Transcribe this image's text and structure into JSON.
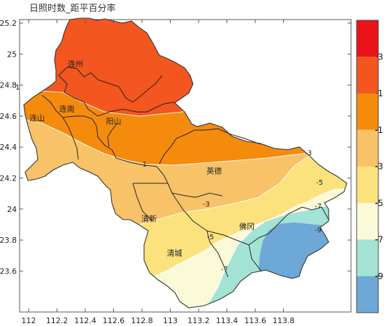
{
  "title": "日照时数_距平百分率",
  "x_ticks": [
    "112",
    "112.2",
    "112.4",
    "112.6",
    "112.8",
    "113",
    "113.2",
    "113.4",
    "113.6",
    "113.8"
  ],
  "y_ticks": [
    "25.2",
    "25",
    "24.8",
    "24.6",
    "24.4",
    "24.2",
    "24",
    "23.8",
    "23.6"
  ],
  "colorbar": {
    "ticks": [
      "3",
      "1",
      "-1",
      "-3",
      "-5",
      "-7",
      "-9"
    ],
    "colors": [
      "#e8141a",
      "#f4561f",
      "#f48b0d",
      "#f8c269",
      "#fbe27d",
      "#fafad8",
      "#a3e3d6",
      "#6ea8d6"
    ]
  },
  "cities": [
    {
      "name": "连州",
      "lon": 112.33,
      "lat": 24.92
    },
    {
      "name": "连南",
      "lon": 112.27,
      "lat": 24.63
    },
    {
      "name": "连山",
      "lon": 112.06,
      "lat": 24.57
    },
    {
      "name": "阳山",
      "lon": 112.6,
      "lat": 24.55
    },
    {
      "name": "英德",
      "lon": 113.31,
      "lat": 24.23
    },
    {
      "name": "清新",
      "lon": 112.85,
      "lat": 23.92
    },
    {
      "name": "清城",
      "lon": 113.03,
      "lat": 23.7
    },
    {
      "name": "佛冈",
      "lon": 113.54,
      "lat": 23.87
    }
  ],
  "contour_labels": [
    "1",
    "-1",
    "-3",
    "-3",
    "-5",
    "-5",
    "-7",
    "-7",
    "-9"
  ],
  "icons": {
    "map": "province-map",
    "colorbar": "legend-colorbar"
  }
}
